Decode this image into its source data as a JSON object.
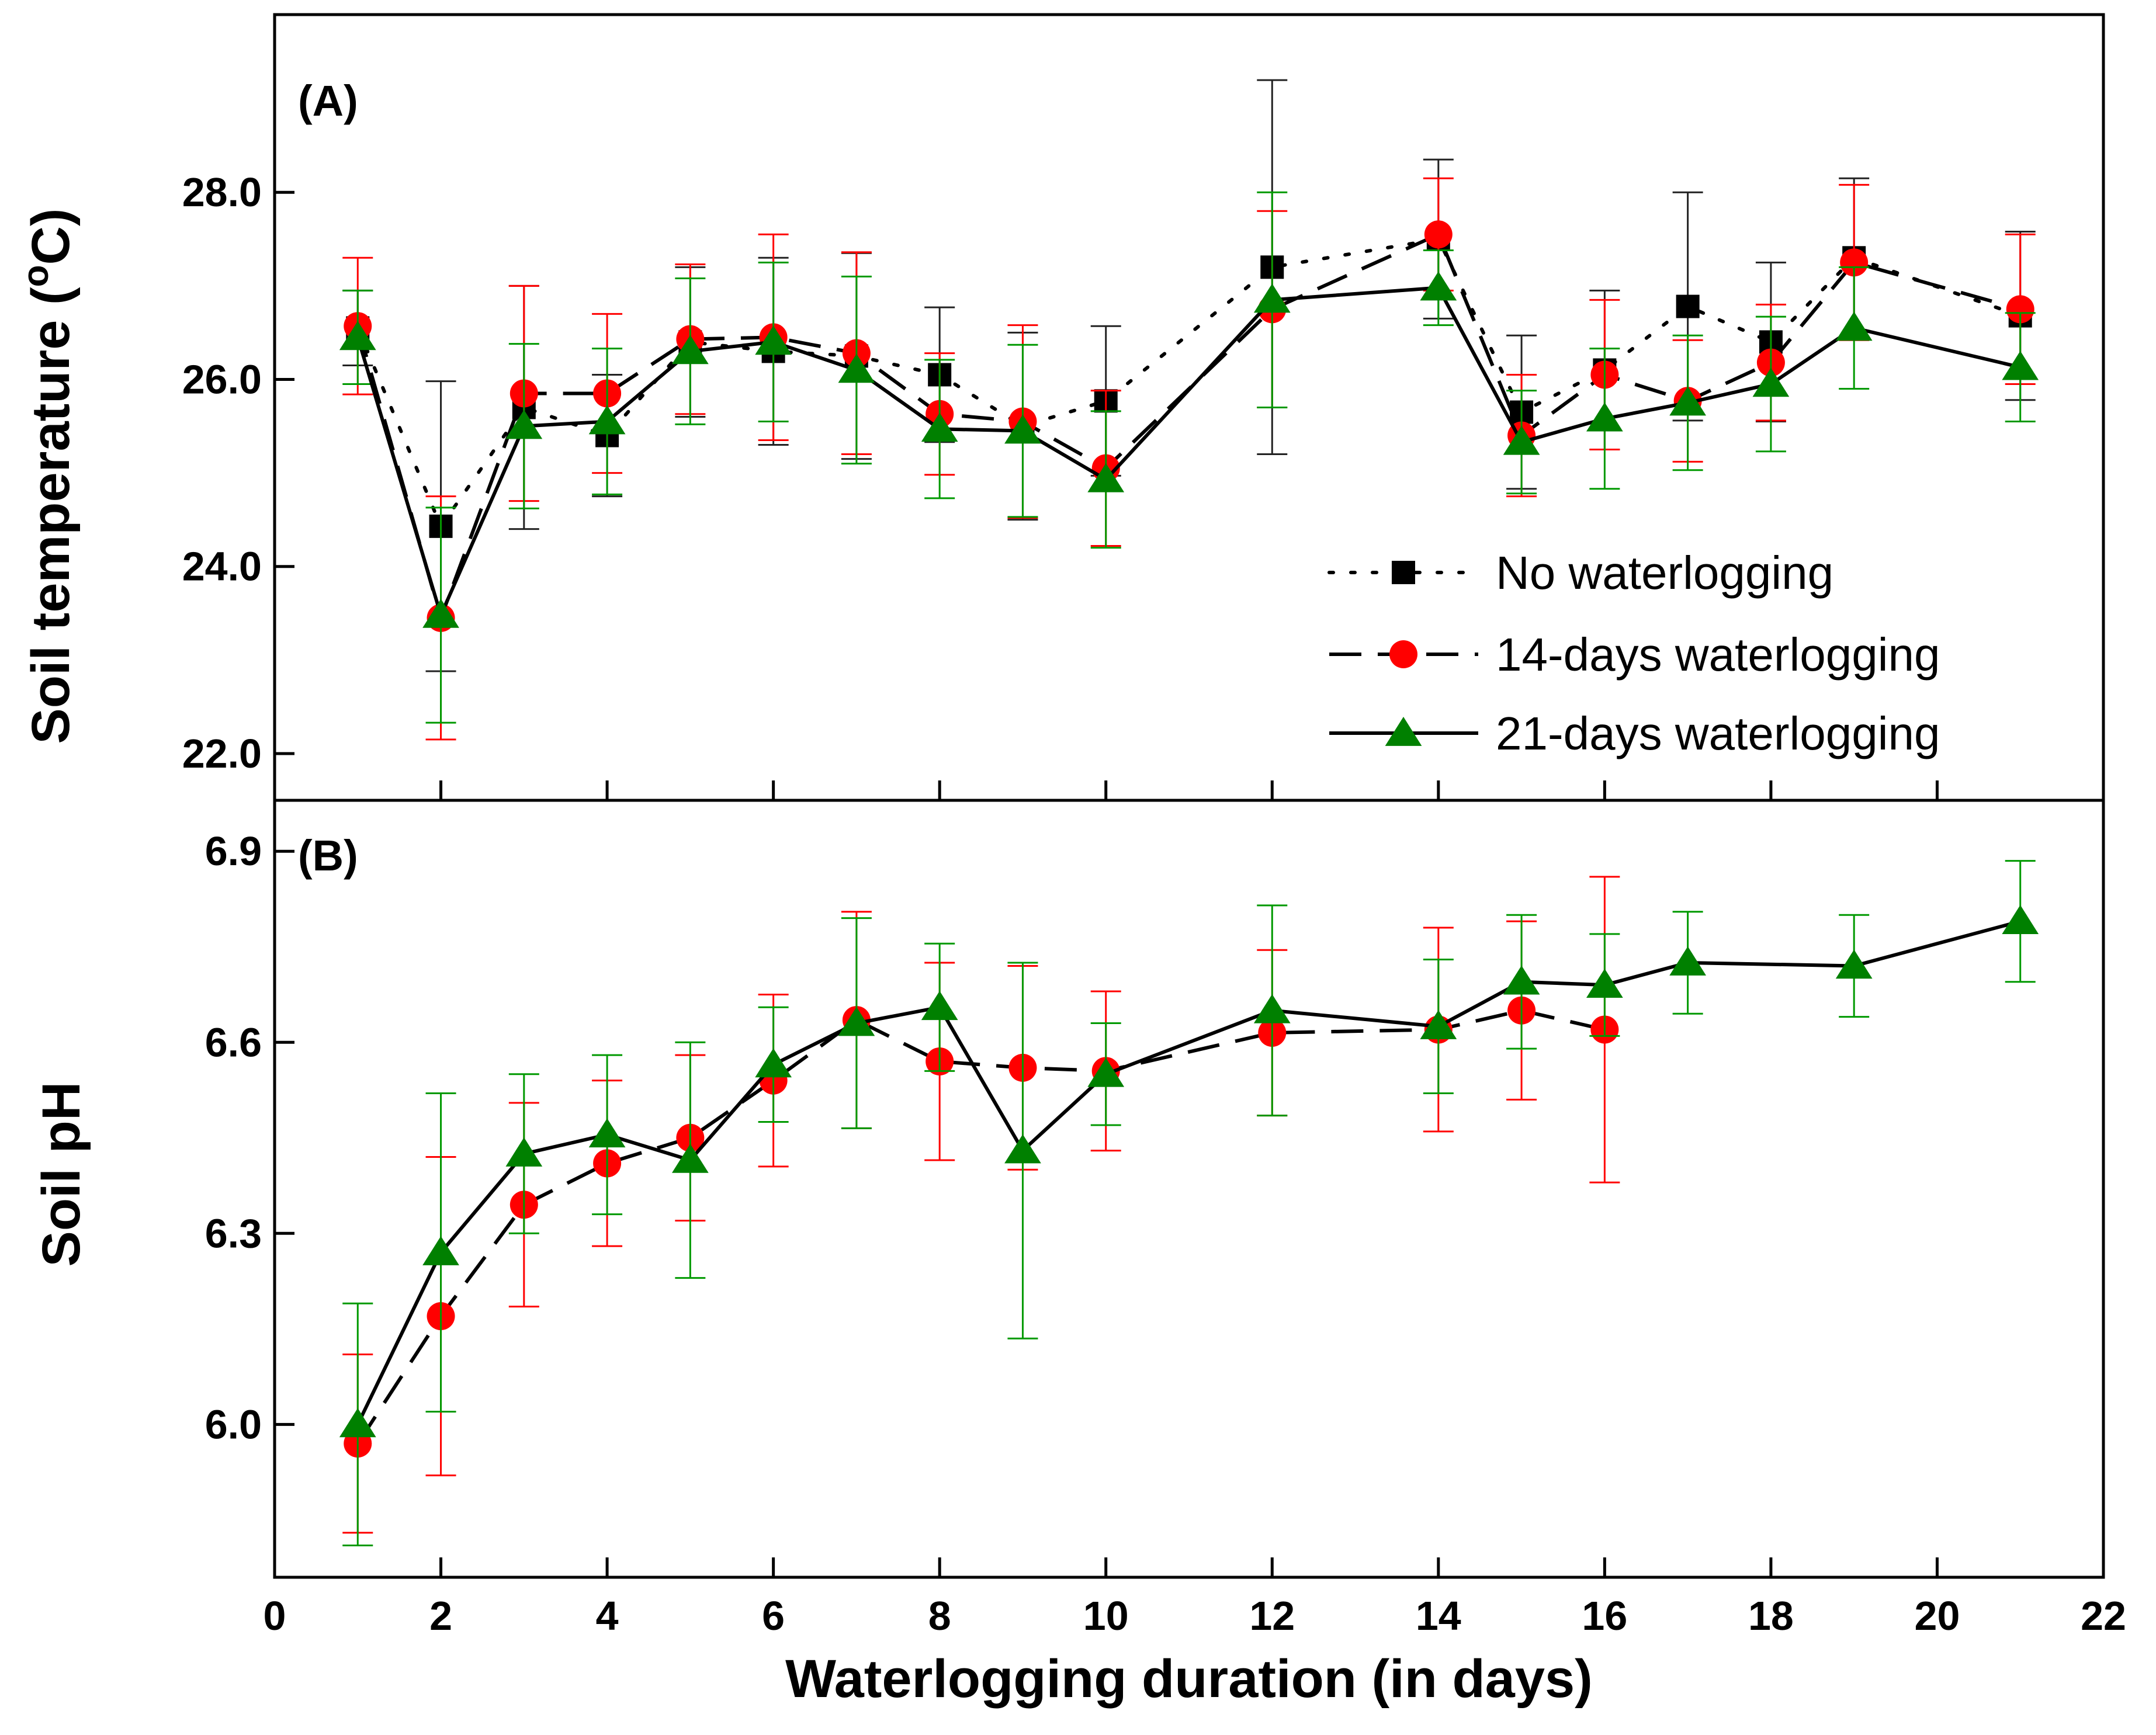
{
  "chart_data": [
    {
      "panel": "(A)",
      "type": "line",
      "ylabel_main": "Soil temperature (",
      "ylabel_sup": "o",
      "ylabel_tail": "C)",
      "ylim": [
        21.5,
        29.9
      ],
      "yticks": [
        22.0,
        24.0,
        26.0,
        28.0
      ],
      "ytick_labels": [
        "22.0",
        "24.0",
        "26.0",
        "28.0"
      ],
      "series": [
        {
          "name": "No waterlogging",
          "marker": "square",
          "dash": "dotted",
          "color": "#000000",
          "errcolor": "#222222",
          "x": [
            1,
            2,
            3,
            4,
            5,
            6,
            7,
            8,
            9,
            10,
            12,
            14,
            15,
            16,
            17,
            18,
            19,
            21
          ],
          "y": [
            26.55,
            24.43,
            25.7,
            25.4,
            26.4,
            26.3,
            26.25,
            26.05,
            25.5,
            25.77,
            27.2,
            27.5,
            25.65,
            26.1,
            26.78,
            26.4,
            27.3,
            26.68
          ],
          "err": [
            0.4,
            1.55,
            1.3,
            0.65,
            0.8,
            1.0,
            1.1,
            0.72,
            1.0,
            0.8,
            2.0,
            0.85,
            0.82,
            0.85,
            1.22,
            0.85,
            0.85,
            0.9
          ]
        },
        {
          "name": "14-days waterlogging",
          "marker": "circle",
          "dash": "dashed",
          "color": "#ff0000",
          "errcolor": "#ff0000",
          "x": [
            1,
            2,
            3,
            4,
            5,
            6,
            7,
            8,
            9,
            10,
            12,
            14,
            15,
            16,
            17,
            18,
            19,
            21
          ],
          "y": [
            26.57,
            23.45,
            25.85,
            25.85,
            26.43,
            26.45,
            26.28,
            25.63,
            25.55,
            25.05,
            26.75,
            27.55,
            25.4,
            26.05,
            25.77,
            26.18,
            27.25,
            26.75
          ],
          "err": [
            0.73,
            1.3,
            1.15,
            0.85,
            0.8,
            1.1,
            1.08,
            0.65,
            1.03,
            0.83,
            1.05,
            0.6,
            0.65,
            0.8,
            0.65,
            0.62,
            0.83,
            0.8
          ]
        },
        {
          "name": "21-days waterlogging",
          "marker": "triangle",
          "dash": "solid",
          "color": "#008000",
          "errcolor": "#009900",
          "x": [
            1,
            2,
            3,
            4,
            5,
            6,
            7,
            8,
            9,
            10,
            12,
            14,
            15,
            16,
            17,
            18,
            19,
            21
          ],
          "y": [
            26.45,
            23.48,
            25.5,
            25.55,
            26.3,
            26.4,
            26.1,
            25.47,
            25.45,
            24.93,
            26.85,
            26.98,
            25.33,
            25.58,
            25.75,
            25.95,
            26.55,
            26.13
          ],
          "err": [
            0.5,
            1.15,
            0.88,
            0.78,
            0.78,
            0.85,
            1.0,
            0.74,
            0.92,
            0.73,
            1.15,
            0.4,
            0.55,
            0.75,
            0.72,
            0.72,
            0.65,
            0.58
          ]
        }
      ]
    },
    {
      "panel": "(B)",
      "type": "line",
      "ylabel": "Soil pH",
      "ylim": [
        5.76,
        6.98
      ],
      "yticks": [
        6.0,
        6.3,
        6.6,
        6.9
      ],
      "ytick_labels": [
        "6.0",
        "6.3",
        "6.6",
        "6.9"
      ],
      "series": [
        {
          "name": "14-days waterlogging",
          "marker": "circle",
          "dash": "dashed",
          "color": "#ff0000",
          "errcolor": "#ff0000",
          "x": [
            1,
            2,
            3,
            4,
            5,
            6,
            7,
            8,
            9,
            10,
            12,
            14,
            15,
            16
          ],
          "y": [
            5.97,
            6.17,
            6.345,
            6.41,
            6.45,
            6.54,
            6.635,
            6.57,
            6.56,
            6.555,
            6.615,
            6.62,
            6.65,
            6.62
          ],
          "err": [
            0.14,
            0.25,
            0.16,
            0.13,
            0.13,
            0.135,
            0.17,
            0.155,
            0.16,
            0.125,
            0.13,
            0.16,
            0.14,
            0.24
          ]
        },
        {
          "name": "21-days waterlogging",
          "marker": "triangle",
          "dash": "solid",
          "color": "#008000",
          "errcolor": "#009900",
          "x": [
            1,
            2,
            3,
            4,
            5,
            6,
            7,
            8,
            9,
            10,
            12,
            14,
            15,
            16,
            17,
            19,
            21
          ],
          "y": [
            6.0,
            6.27,
            6.425,
            6.455,
            6.415,
            6.565,
            6.63,
            6.655,
            6.43,
            6.55,
            6.65,
            6.625,
            6.695,
            6.69,
            6.725,
            6.72,
            6.79
          ],
          "err": [
            0.19,
            0.25,
            0.125,
            0.125,
            0.185,
            0.09,
            0.165,
            0.1,
            0.295,
            0.08,
            0.165,
            0.105,
            0.105,
            0.08,
            0.08,
            0.08,
            0.095
          ]
        }
      ]
    }
  ],
  "xaxis": {
    "title": "Waterlogging duration (in days)",
    "xlim": [
      0,
      22
    ],
    "ticks": [
      0,
      2,
      4,
      6,
      8,
      10,
      12,
      14,
      16,
      18,
      20,
      22
    ],
    "tick_labels": [
      "0",
      "2",
      "4",
      "6",
      "8",
      "10",
      "12",
      "14",
      "16",
      "18",
      "20",
      "22"
    ]
  },
  "legend": {
    "placement": "bottom-right of panel A",
    "entries": [
      "No waterlogging",
      "14-days waterlogging",
      "21-days waterlogging"
    ]
  }
}
